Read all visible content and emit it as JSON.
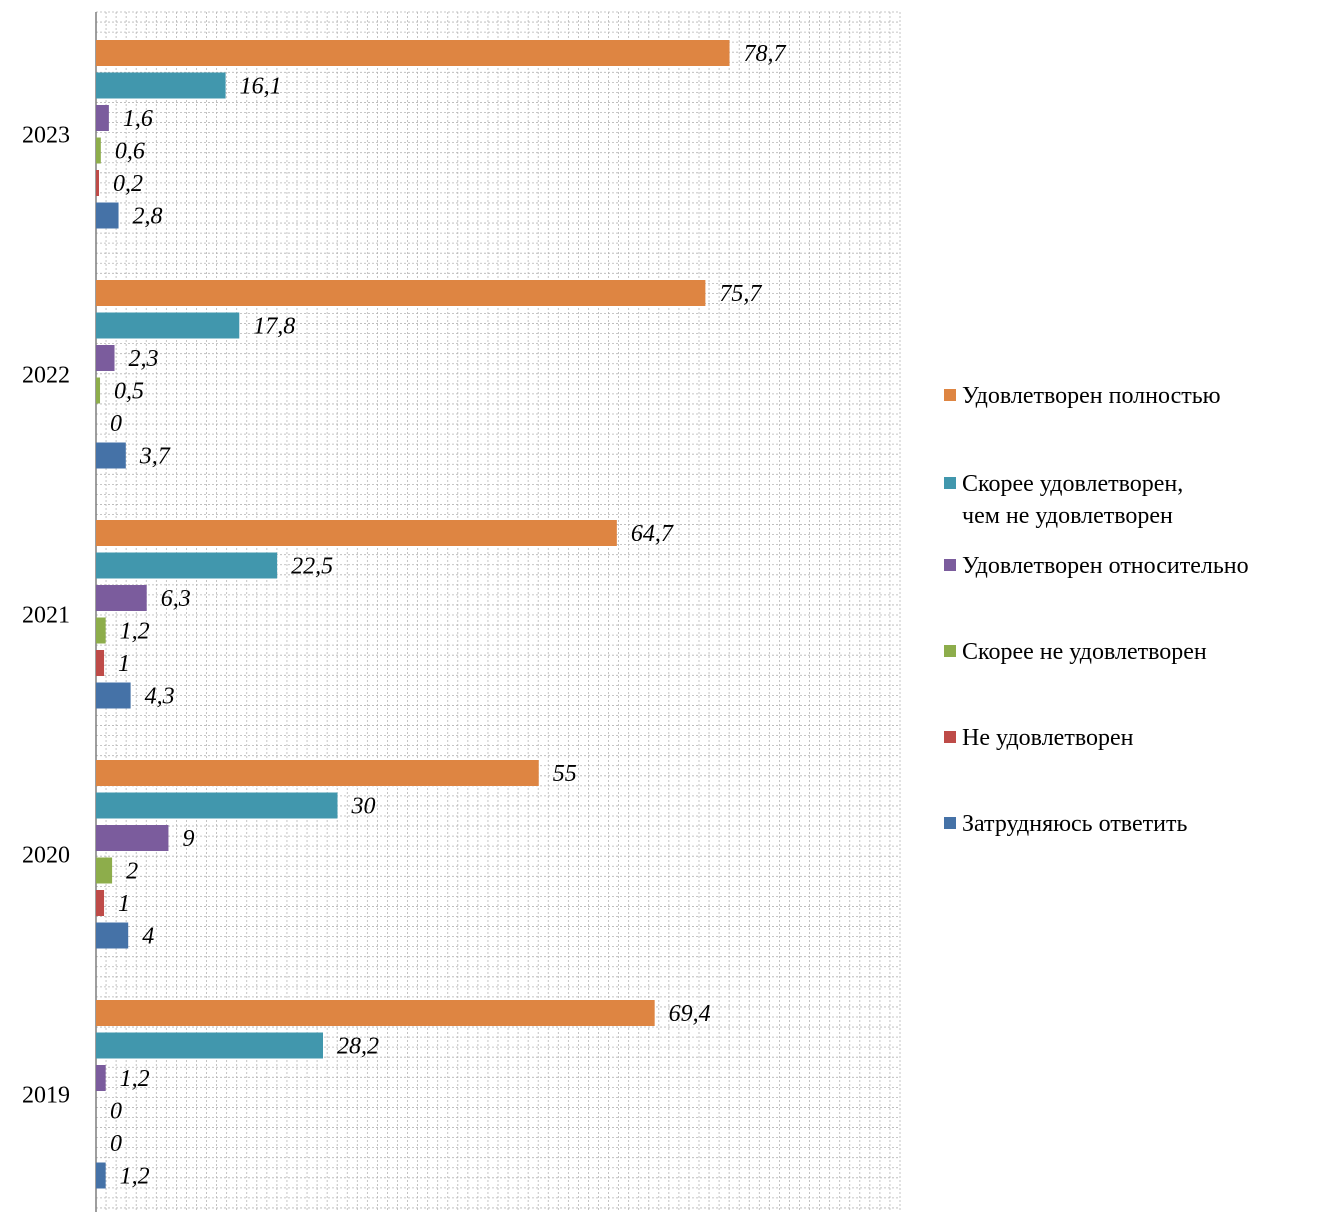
{
  "chart_data": {
    "type": "bar",
    "orientation": "horizontal",
    "categories": [
      "2023",
      "2022",
      "2021",
      "2020",
      "2019"
    ],
    "series": [
      {
        "name": "Удовлетворен полностью",
        "color": "#DE8542",
        "values": [
          78.7,
          75.7,
          64.7,
          55,
          69.4
        ],
        "labels": [
          "78,7",
          "75,7",
          "64,7",
          "55",
          "69,4"
        ]
      },
      {
        "name": "Скорее удовлетворен,\nчем не удовлетворен",
        "color": "#4197AD",
        "values": [
          16.1,
          17.8,
          22.5,
          30,
          28.2
        ],
        "labels": [
          "16,1",
          "17,8",
          "22,5",
          "30",
          "28,2"
        ]
      },
      {
        "name": "Удовлетворен относительно",
        "color": "#7B5C9D",
        "values": [
          1.6,
          2.3,
          6.3,
          9,
          1.2
        ],
        "labels": [
          "1,6",
          "2,3",
          "6,3",
          "9",
          "1,2"
        ]
      },
      {
        "name": "Скорее не удовлетворен",
        "color": "#8DAD4B",
        "values": [
          0.6,
          0.5,
          1.2,
          2,
          0
        ],
        "labels": [
          "0,6",
          "0,5",
          "1,2",
          "2",
          "0"
        ]
      },
      {
        "name": "Не удовлетворен",
        "color": "#BE4B48",
        "values": [
          0.2,
          0,
          1,
          1,
          0
        ],
        "labels": [
          "0,2",
          "0",
          "1",
          "1",
          "0"
        ]
      },
      {
        "name": "Затрудняюсь ответить",
        "color": "#4572A7",
        "values": [
          2.8,
          3.7,
          4.3,
          4,
          1.2
        ],
        "labels": [
          "2,8",
          "3,7",
          "4,3",
          "4",
          "1,2"
        ]
      }
    ],
    "xlim": [
      0,
      100
    ],
    "grid": true,
    "legend": "right",
    "data_labels": "italic"
  }
}
